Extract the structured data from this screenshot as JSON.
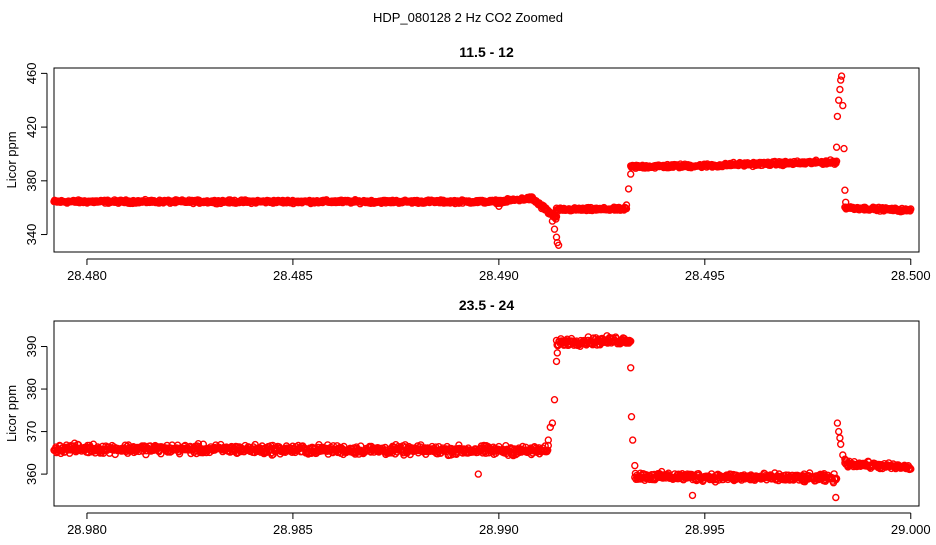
{
  "figure": {
    "suptitle": "HDP_080128  2 Hz CO2 Zoomed"
  },
  "chart_data": [
    {
      "type": "scatter",
      "title": "11.5 - 12",
      "xlabel": "",
      "ylabel": "Licor ppm",
      "xlim": [
        28.4792,
        28.5002
      ],
      "ylim": [
        327,
        464
      ],
      "x_ticks": [
        28.48,
        28.485,
        28.49,
        28.495,
        28.5
      ],
      "x_tick_labels": [
        "28.480",
        "28.485",
        "28.490",
        "28.495",
        "28.500"
      ],
      "y_ticks": [
        340,
        380,
        420,
        460
      ],
      "y_tick_labels": [
        "340",
        "380",
        "420",
        "460"
      ],
      "point_color": "#ff0000",
      "grid": false,
      "series": [
        {
          "segments": [
            {
              "x0": 28.4792,
              "x1": 28.49,
              "y0": 364.5,
              "y1": 364.5,
              "noise": 1.0
            },
            {
              "x0": 28.49,
              "x1": 28.4908,
              "y0": 364.5,
              "y1": 367.0,
              "noise": 1.0
            },
            {
              "x0": 28.4908,
              "x1": 28.4914,
              "y0": 367.0,
              "y1": 352.0,
              "noise": 1.5
            },
            {
              "x0": 28.4914,
              "x1": 28.4931,
              "y0": 358.5,
              "y1": 359.0,
              "noise": 1.0
            },
            {
              "x0": 28.4932,
              "x1": 28.4955,
              "y0": 390.5,
              "y1": 391.5,
              "noise": 1.2
            },
            {
              "x0": 28.4955,
              "x1": 28.4982,
              "y0": 392.0,
              "y1": 394.0,
              "noise": 1.2
            },
            {
              "x0": 28.4984,
              "x1": 28.5,
              "y0": 360.0,
              "y1": 358.0,
              "noise": 1.0
            }
          ],
          "extra_points": [
            [
              28.49,
              361
            ],
            [
              28.4912,
              356
            ],
            [
              28.4913,
              350
            ],
            [
              28.49135,
              344
            ],
            [
              28.4914,
              338
            ],
            [
              28.49142,
              334
            ],
            [
              28.49145,
              332
            ],
            [
              28.4931,
              362
            ],
            [
              28.49315,
              374
            ],
            [
              28.4932,
              385
            ],
            [
              28.4982,
              405
            ],
            [
              28.49822,
              428
            ],
            [
              28.49825,
              440
            ],
            [
              28.49828,
              448
            ],
            [
              28.4983,
              455
            ],
            [
              28.49832,
              458
            ],
            [
              28.49835,
              436
            ],
            [
              28.49838,
              404
            ],
            [
              28.4984,
              373
            ],
            [
              28.49842,
              364
            ]
          ]
        }
      ]
    },
    {
      "type": "scatter",
      "title": "23.5 - 24",
      "xlabel": "",
      "ylabel": "Licor ppm",
      "xlim": [
        28.9792,
        29.0002
      ],
      "ylim": [
        352.5,
        396
      ],
      "x_ticks": [
        28.98,
        28.985,
        28.99,
        28.995,
        29.0
      ],
      "x_tick_labels": [
        "28.980",
        "28.985",
        "28.990",
        "28.995",
        "29.000"
      ],
      "y_ticks": [
        360,
        370,
        380,
        390
      ],
      "y_tick_labels": [
        "360",
        "370",
        "380",
        "390"
      ],
      "point_color": "#ff0000",
      "grid": false,
      "series": [
        {
          "segments": [
            {
              "x0": 28.9792,
              "x1": 28.9912,
              "y0": 366.0,
              "y1": 365.5,
              "noise": 0.9
            },
            {
              "x0": 28.9914,
              "x1": 28.9932,
              "y0": 391.0,
              "y1": 391.5,
              "noise": 0.8
            },
            {
              "x0": 28.9933,
              "x1": 28.9982,
              "y0": 359.5,
              "y1": 359.0,
              "noise": 0.8
            },
            {
              "x0": 28.9984,
              "x1": 29.0,
              "y0": 362.5,
              "y1": 361.5,
              "noise": 0.6
            }
          ],
          "extra_points": [
            [
              28.9895,
              360
            ],
            [
              28.9912,
              368
            ],
            [
              28.99125,
              371
            ],
            [
              28.9913,
              372
            ],
            [
              28.99135,
              377.5
            ],
            [
              28.9914,
              386.5
            ],
            [
              28.99142,
              388.5
            ],
            [
              28.9932,
              385
            ],
            [
              28.99322,
              373.5
            ],
            [
              28.99325,
              368
            ],
            [
              28.9933,
              362
            ],
            [
              28.9947,
              355
            ],
            [
              28.99818,
              354.5
            ],
            [
              28.99822,
              372
            ],
            [
              28.99825,
              370
            ],
            [
              28.99828,
              368.5
            ],
            [
              28.9983,
              367
            ],
            [
              28.99835,
              364.5
            ],
            [
              28.9984,
              363.5
            ]
          ]
        }
      ]
    }
  ]
}
